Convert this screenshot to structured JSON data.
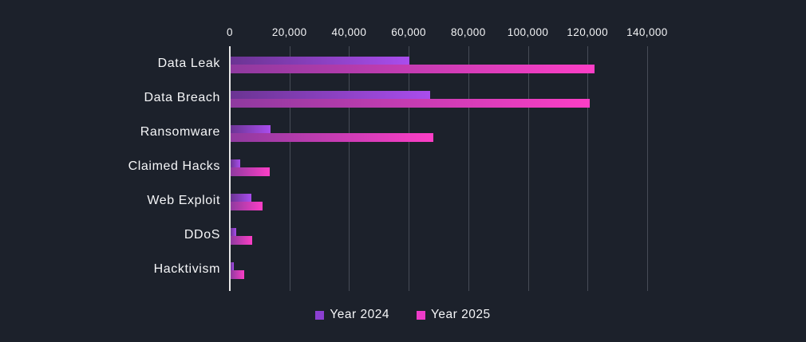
{
  "chart_data": {
    "type": "bar",
    "orientation": "horizontal",
    "title": "",
    "xlabel": "",
    "ylabel": "",
    "categories": [
      "Data Leak",
      "Data Breach",
      "Ransomware",
      "Claimed Hacks",
      "Web Exploit",
      "DDoS",
      "Hacktivism"
    ],
    "series": [
      {
        "name": "Year 2024",
        "values": [
          60000,
          67000,
          13500,
          3200,
          7000,
          2000,
          1200
        ],
        "color": "#8b3fd1",
        "gradient": [
          "#6b3493",
          "#a94ded"
        ]
      },
      {
        "name": "Year 2025",
        "values": [
          122000,
          120500,
          68000,
          13200,
          10800,
          7100,
          4600
        ],
        "color": "#ed3bc8",
        "gradient": [
          "#8f3a9f",
          "#fc3ec6"
        ]
      }
    ],
    "x_ticks": {
      "values": [
        0,
        20000,
        40000,
        60000,
        80000,
        100000,
        120000,
        140000
      ],
      "labels": [
        "0",
        "20,000",
        "40,000",
        "60,000",
        "80,000",
        "100,000",
        "120,000",
        "140,000"
      ]
    },
    "xlim": [
      0,
      140000
    ],
    "grid": "vertical",
    "legend_position": "bottom",
    "colors": {
      "background": "#1c212b",
      "gridline": "#474c57",
      "axis_line": "#e8e8e8",
      "text": "#f2f3f5"
    }
  }
}
